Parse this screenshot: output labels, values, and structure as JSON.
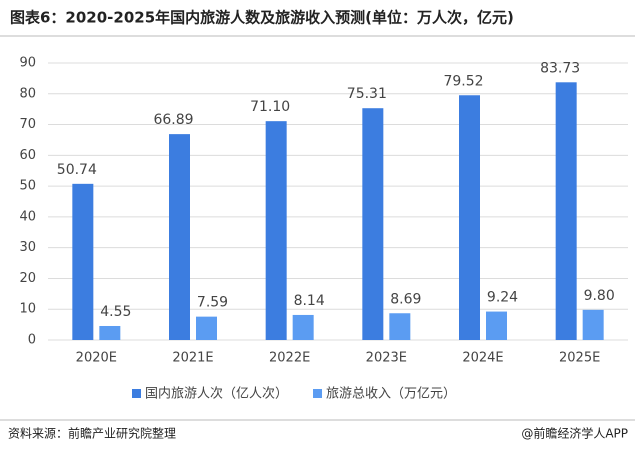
{
  "chart_data": {
    "type": "bar",
    "title": "图表6：2020-2025年国内旅游人数及旅游收入预测(单位：万人次，亿元)",
    "categories": [
      "2020E",
      "2021E",
      "2022E",
      "2023E",
      "2024E",
      "2025E"
    ],
    "series": [
      {
        "name": "国内旅游人次（亿人次）",
        "color": "#3c7de0",
        "values": [
          50.74,
          66.89,
          71.1,
          75.31,
          79.52,
          83.73
        ],
        "value_labels": [
          "50.74",
          "66.89",
          "71.10",
          "75.31",
          "79.52",
          "83.73"
        ]
      },
      {
        "name": "旅游总收入（万亿元）",
        "color": "#5b9cf2",
        "values": [
          4.55,
          7.59,
          8.14,
          8.69,
          9.24,
          9.8
        ],
        "value_labels": [
          "4.55",
          "7.59",
          "8.14",
          "8.69",
          "9.24",
          "9.80"
        ]
      }
    ],
    "ylim": [
      0,
      90
    ],
    "yticks": [
      0,
      10,
      20,
      30,
      40,
      50,
      60,
      70,
      80,
      90
    ],
    "grid": true,
    "source": "资料来源：前瞻产业研究院整理",
    "credit": "@前瞻经济学人APP"
  }
}
